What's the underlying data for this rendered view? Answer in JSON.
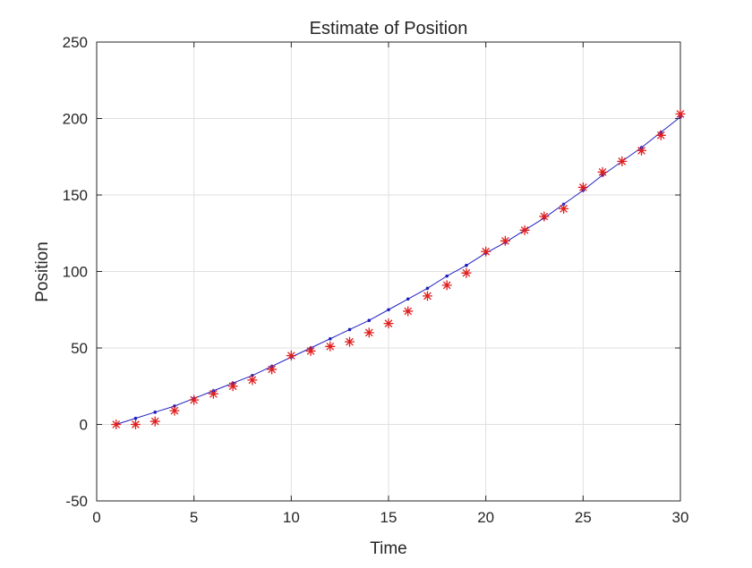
{
  "chart_data": {
    "type": "line",
    "title": "Estimate of Position",
    "xlabel": "Time",
    "ylabel": "Position",
    "xlim": [
      0,
      30
    ],
    "ylim": [
      -50,
      250
    ],
    "xticks": [
      0,
      5,
      10,
      15,
      20,
      25,
      30
    ],
    "yticks": [
      -50,
      0,
      50,
      100,
      150,
      200,
      250
    ],
    "grid": true,
    "series": [
      {
        "marker": "dot",
        "line": "solid",
        "color": "#1f1fbf",
        "x": [
          1,
          2,
          3,
          4,
          5,
          6,
          7,
          8,
          9,
          10,
          11,
          12,
          13,
          14,
          15,
          16,
          17,
          18,
          19,
          20,
          21,
          22,
          23,
          24,
          25,
          26,
          27,
          28,
          29,
          30
        ],
        "y": [
          0,
          4,
          8,
          12,
          17,
          22,
          27,
          32,
          38,
          44,
          50,
          56,
          62,
          68,
          75,
          82,
          89,
          97,
          104,
          112,
          119,
          127,
          135,
          144,
          153,
          163,
          172,
          181,
          191,
          201
        ]
      },
      {
        "marker": "asterisk",
        "line": "none",
        "color": "#e01e1e",
        "x": [
          1,
          2,
          3,
          4,
          5,
          6,
          7,
          8,
          9,
          10,
          11,
          12,
          13,
          14,
          15,
          16,
          17,
          18,
          19,
          20,
          21,
          22,
          23,
          24,
          25,
          26,
          27,
          28,
          29,
          30
        ],
        "y": [
          0,
          0,
          2,
          9,
          16,
          20,
          25,
          29,
          36,
          45,
          48,
          51,
          54,
          60,
          66,
          74,
          84,
          91,
          99,
          113,
          120,
          127,
          136,
          141,
          155,
          165,
          172,
          179,
          189,
          203
        ]
      }
    ]
  }
}
